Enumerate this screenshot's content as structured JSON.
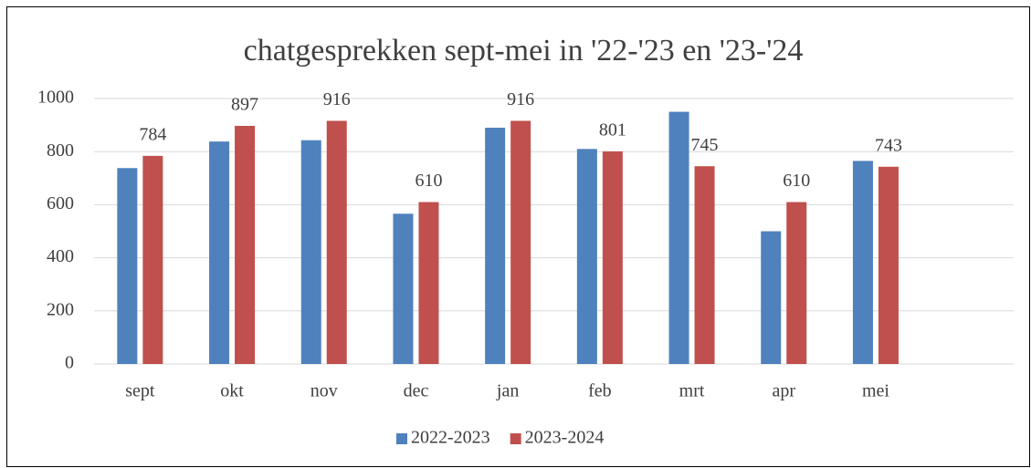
{
  "chart_data": {
    "type": "bar",
    "title": "chatgesprekken sept-mei in '22-'23 en '23-'24",
    "categories": [
      "sept",
      "okt",
      "nov",
      "dec",
      "jan",
      "feb",
      "mrt",
      "apr",
      "mei",
      null
    ],
    "series": [
      {
        "name": "2022-2023",
        "color": "#4f81bd",
        "values": [
          738,
          838,
          843,
          566,
          890,
          810,
          950,
          500,
          765,
          null
        ]
      },
      {
        "name": "2023-2024",
        "color": "#c0504d",
        "values": [
          784,
          897,
          916,
          610,
          916,
          801,
          745,
          610,
          743,
          null
        ],
        "data_labels": true
      }
    ],
    "ylim": [
      0,
      1000
    ],
    "yticks": [
      0,
      200,
      400,
      600,
      800,
      1000
    ],
    "grid": true,
    "legend": "bottom"
  }
}
